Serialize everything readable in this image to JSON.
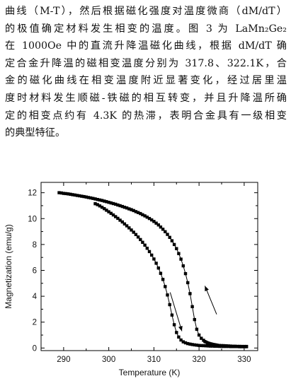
{
  "paragraph": {
    "lines": [
      "曲线（M-T），然后根据磁化强度对温度微商（dM/dT）",
      "的极值确定材料发生相变的温度。图 3 为 LaMn₂Ge₂",
      "在 1000Oe 中的直流升降温磁化曲线，根据 dM/dT 确",
      "定合金升降温的磁相变温度分别为 317.8、322.1K，合",
      "金的磁化曲线在相变温度附近显著变化，经过居里温",
      "度时材料发生顺磁-铁磁的相互转变，并且升降温所确",
      "定的相变点约有 4.3K 的热滞，表明合金具有一级相变",
      "的典型特征。"
    ]
  },
  "chart_data": {
    "type": "scatter",
    "xlabel": "Temperature (K)",
    "ylabel": "Magnetization (emu/g)",
    "xlim": [
      285,
      333
    ],
    "ylim": [
      -0.2,
      12.8
    ],
    "xticks": [
      290,
      300,
      310,
      320,
      330
    ],
    "yticks": [
      0,
      2,
      4,
      6,
      8,
      10,
      12
    ],
    "series": [
      {
        "x": [
          289,
          289.5,
          290,
          290.5,
          291,
          291.5,
          292,
          292.5,
          293,
          293.5,
          294,
          294.5,
          295,
          295.5,
          296,
          296.5,
          297,
          297.5,
          298,
          298.5,
          299,
          299.5,
          300,
          300.5,
          301,
          301.5,
          302,
          302.5,
          303,
          303.5,
          304,
          304.5,
          305,
          305.5,
          306,
          306.5,
          307,
          307.5,
          308,
          308.5,
          309,
          309.5,
          310,
          310.5,
          311,
          311.5,
          312,
          312.5,
          313,
          313.5,
          314,
          314.5,
          315,
          315.5,
          316,
          316.5,
          317,
          317.5,
          318,
          318.5,
          319,
          319.5,
          320,
          320.5,
          321,
          321.3,
          321.6,
          321.9,
          322.2,
          322.5,
          322.8,
          323.1,
          323.4,
          323.7,
          324,
          324.5,
          325,
          325.5,
          326,
          326.5,
          327,
          327.5,
          328,
          328.5,
          329,
          329.5,
          330,
          330.5
        ],
        "y": [
          12.0,
          11.98,
          11.95,
          11.93,
          11.91,
          11.88,
          11.85,
          11.82,
          11.79,
          11.76,
          11.73,
          11.7,
          11.67,
          11.63,
          11.6,
          11.56,
          11.52,
          11.48,
          11.44,
          11.4,
          11.35,
          11.31,
          11.26,
          11.21,
          11.16,
          11.11,
          11.05,
          11.0,
          10.94,
          10.88,
          10.82,
          10.75,
          10.69,
          10.62,
          10.54,
          10.47,
          10.39,
          10.3,
          10.21,
          10.11,
          10.01,
          9.9,
          9.78,
          9.65,
          9.51,
          9.35,
          9.18,
          8.99,
          8.78,
          8.55,
          8.29,
          8.0,
          7.68,
          7.3,
          6.87,
          6.35,
          5.75,
          5.05,
          4.2,
          3.2,
          2.2,
          1.45,
          1.0,
          0.75,
          0.6,
          0.5,
          0.45,
          0.4,
          0.36,
          0.33,
          0.3,
          0.28,
          0.26,
          0.24,
          0.22,
          0.2,
          0.19,
          0.18,
          0.17,
          0.16,
          0.15,
          0.14,
          0.14,
          0.13,
          0.13,
          0.12,
          0.12,
          0.12
        ],
        "marker": "square",
        "color": "#000000"
      },
      {
        "x": [
          297,
          297.5,
          298,
          298.5,
          299,
          299.5,
          300,
          300.5,
          301,
          301.5,
          302,
          302.5,
          303,
          303.5,
          304,
          304.5,
          305,
          305.5,
          306,
          306.5,
          307,
          307.5,
          308,
          308.5,
          309,
          309.5,
          310,
          310.5,
          311,
          311.5,
          312,
          312.5,
          313,
          313.5,
          314,
          314.5,
          315,
          315.5,
          316,
          316.5,
          317,
          317.5,
          318,
          318.5,
          319,
          319.5,
          320,
          320.5,
          321,
          321.5,
          322,
          322.5,
          323,
          323.5,
          324,
          324.5,
          325,
          325.5,
          326,
          326.5,
          327,
          327.5,
          328,
          328.5,
          329,
          329.5,
          330,
          330.5
        ],
        "y": [
          11.15,
          11.08,
          10.98,
          10.88,
          10.77,
          10.65,
          10.53,
          10.41,
          10.28,
          10.15,
          10.02,
          9.88,
          9.74,
          9.59,
          9.44,
          9.28,
          9.12,
          8.95,
          8.77,
          8.58,
          8.38,
          8.17,
          7.95,
          7.71,
          7.45,
          7.18,
          6.88,
          6.55,
          6.18,
          5.77,
          5.3,
          4.75,
          4.1,
          3.35,
          2.55,
          1.8,
          1.2,
          0.85,
          0.62,
          0.48,
          0.4,
          0.34,
          0.3,
          0.27,
          0.24,
          0.22,
          0.2,
          0.19,
          0.18,
          0.17,
          0.16,
          0.15,
          0.15,
          0.14,
          0.14,
          0.13,
          0.13,
          0.12,
          0.12,
          0.12,
          0.11,
          0.11,
          0.11,
          0.11,
          0.1,
          0.1,
          0.1,
          0.1
        ],
        "marker": "square",
        "color": "#000000"
      }
    ],
    "arrows": [
      {
        "x": [
          321.3,
          323.9
        ],
        "y": [
          4.8,
          2.6
        ],
        "direction": "up"
      },
      {
        "x": [
          313.6,
          316.2
        ],
        "y": [
          4.3,
          1.3
        ],
        "direction": "down"
      }
    ],
    "grid": false
  }
}
